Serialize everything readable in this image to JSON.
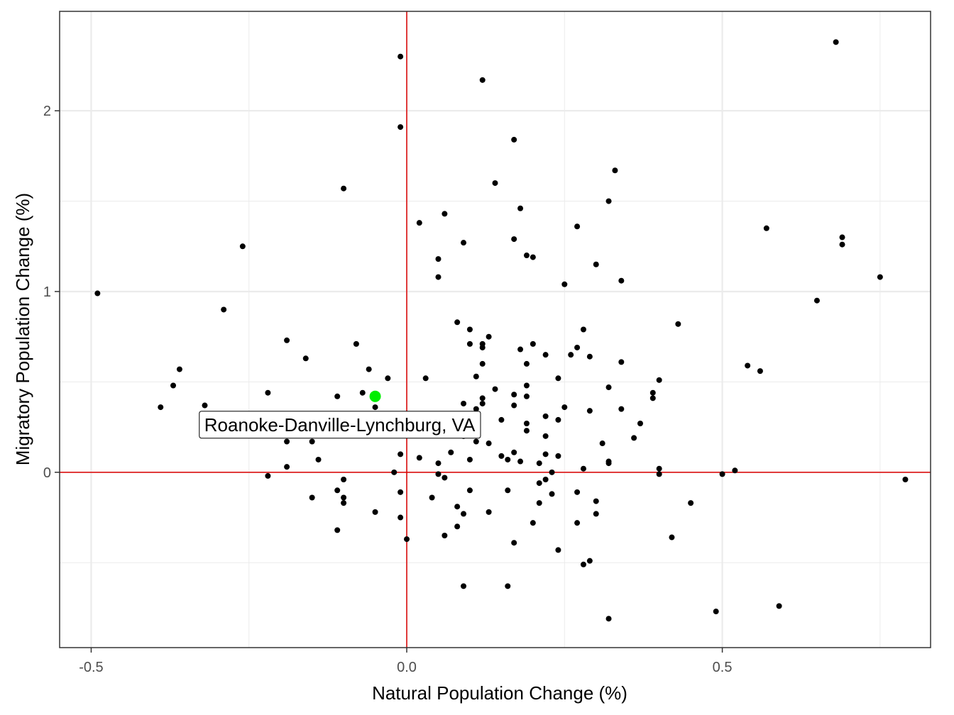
{
  "chart_data": {
    "type": "scatter",
    "xlabel": "Natural Population Change (%)",
    "ylabel": "Migratory Population Change (%)",
    "xlim": [
      -0.55,
      0.83
    ],
    "ylim": [
      -0.97,
      2.55
    ],
    "x_ticks": [
      -0.5,
      0.0,
      0.5
    ],
    "x_tick_labels": [
      "-0.5",
      "0.0",
      "0.5"
    ],
    "y_ticks": [
      0,
      1,
      2
    ],
    "y_tick_labels": [
      "0",
      "1",
      "2"
    ],
    "x_minor_ticks": [
      -0.25,
      0.25,
      0.75
    ],
    "y_minor_ticks": [
      -0.5,
      0.5,
      1.5
    ],
    "grid": true,
    "reference_lines": {
      "x": 0,
      "y": 0,
      "color": "#dd0000"
    },
    "point_color": "#000000",
    "highlight_color": "#00ee00",
    "highlight": {
      "label": "Roanoke-Danville-Lynchburg, VA",
      "x": -0.05,
      "y": 0.42
    },
    "points": [
      [
        -0.49,
        0.99
      ],
      [
        -0.39,
        0.36
      ],
      [
        -0.37,
        0.48
      ],
      [
        -0.36,
        0.57
      ],
      [
        -0.32,
        0.37
      ],
      [
        -0.29,
        0.9
      ],
      [
        -0.26,
        1.25
      ],
      [
        -0.22,
        0.44
      ],
      [
        -0.22,
        -0.02
      ],
      [
        -0.19,
        0.73
      ],
      [
        -0.19,
        0.17
      ],
      [
        -0.19,
        0.03
      ],
      [
        -0.16,
        0.63
      ],
      [
        -0.15,
        0.17
      ],
      [
        -0.15,
        -0.14
      ],
      [
        -0.14,
        0.07
      ],
      [
        -0.11,
        0.42
      ],
      [
        -0.11,
        -0.1
      ],
      [
        -0.11,
        -0.32
      ],
      [
        -0.1,
        1.57
      ],
      [
        -0.1,
        -0.04
      ],
      [
        -0.1,
        -0.14
      ],
      [
        -0.1,
        -0.17
      ],
      [
        -0.08,
        0.71
      ],
      [
        -0.07,
        0.44
      ],
      [
        -0.06,
        0.57
      ],
      [
        -0.05,
        0.36
      ],
      [
        -0.05,
        -0.22
      ],
      [
        -0.03,
        0.52
      ],
      [
        -0.02,
        0.0
      ],
      [
        -0.01,
        2.3
      ],
      [
        -0.01,
        1.91
      ],
      [
        -0.01,
        0.1
      ],
      [
        -0.01,
        -0.11
      ],
      [
        -0.01,
        -0.25
      ],
      [
        0.0,
        -0.37
      ],
      [
        0.02,
        1.38
      ],
      [
        0.02,
        0.08
      ],
      [
        0.03,
        0.52
      ],
      [
        0.04,
        -0.14
      ],
      [
        0.05,
        1.18
      ],
      [
        0.05,
        1.08
      ],
      [
        0.05,
        0.05
      ],
      [
        0.05,
        -0.01
      ],
      [
        0.06,
        1.43
      ],
      [
        0.06,
        -0.03
      ],
      [
        0.06,
        -0.35
      ],
      [
        0.07,
        0.11
      ],
      [
        0.08,
        0.83
      ],
      [
        0.08,
        -0.19
      ],
      [
        0.08,
        -0.3
      ],
      [
        0.09,
        1.27
      ],
      [
        0.09,
        0.38
      ],
      [
        0.09,
        0.2
      ],
      [
        0.09,
        -0.23
      ],
      [
        0.09,
        -0.63
      ],
      [
        0.1,
        0.79
      ],
      [
        0.1,
        0.71
      ],
      [
        0.1,
        0.07
      ],
      [
        0.1,
        -0.1
      ],
      [
        0.11,
        0.53
      ],
      [
        0.11,
        0.35
      ],
      [
        0.11,
        0.17
      ],
      [
        0.12,
        2.17
      ],
      [
        0.12,
        0.71
      ],
      [
        0.12,
        0.69
      ],
      [
        0.12,
        0.6
      ],
      [
        0.12,
        0.41
      ],
      [
        0.12,
        0.38
      ],
      [
        0.13,
        0.75
      ],
      [
        0.13,
        0.16
      ],
      [
        0.13,
        -0.22
      ],
      [
        0.14,
        1.6
      ],
      [
        0.14,
        0.46
      ],
      [
        0.15,
        0.29
      ],
      [
        0.15,
        0.09
      ],
      [
        0.16,
        0.07
      ],
      [
        0.16,
        -0.1
      ],
      [
        0.16,
        -0.63
      ],
      [
        0.17,
        1.84
      ],
      [
        0.17,
        1.29
      ],
      [
        0.17,
        0.43
      ],
      [
        0.17,
        0.37
      ],
      [
        0.17,
        0.11
      ],
      [
        0.17,
        -0.39
      ],
      [
        0.18,
        1.46
      ],
      [
        0.18,
        0.68
      ],
      [
        0.18,
        0.06
      ],
      [
        0.19,
        1.2
      ],
      [
        0.19,
        0.6
      ],
      [
        0.19,
        0.48
      ],
      [
        0.19,
        0.42
      ],
      [
        0.19,
        0.27
      ],
      [
        0.19,
        0.23
      ],
      [
        0.2,
        1.19
      ],
      [
        0.2,
        0.71
      ],
      [
        0.2,
        -0.28
      ],
      [
        0.21,
        0.05
      ],
      [
        0.21,
        -0.06
      ],
      [
        0.21,
        -0.17
      ],
      [
        0.22,
        0.65
      ],
      [
        0.22,
        0.31
      ],
      [
        0.22,
        0.2
      ],
      [
        0.22,
        0.1
      ],
      [
        0.22,
        -0.04
      ],
      [
        0.23,
        0.0
      ],
      [
        0.23,
        -0.12
      ],
      [
        0.24,
        0.52
      ],
      [
        0.24,
        0.29
      ],
      [
        0.24,
        0.09
      ],
      [
        0.24,
        -0.43
      ],
      [
        0.25,
        1.04
      ],
      [
        0.25,
        0.36
      ],
      [
        0.26,
        0.65
      ],
      [
        0.27,
        1.36
      ],
      [
        0.27,
        0.69
      ],
      [
        0.27,
        -0.11
      ],
      [
        0.27,
        -0.28
      ],
      [
        0.28,
        0.79
      ],
      [
        0.28,
        0.02
      ],
      [
        0.28,
        -0.51
      ],
      [
        0.29,
        0.64
      ],
      [
        0.29,
        0.34
      ],
      [
        0.29,
        -0.49
      ],
      [
        0.3,
        1.15
      ],
      [
        0.3,
        -0.16
      ],
      [
        0.3,
        -0.23
      ],
      [
        0.31,
        0.16
      ],
      [
        0.32,
        1.5
      ],
      [
        0.32,
        0.47
      ],
      [
        0.32,
        0.06
      ],
      [
        0.32,
        0.05
      ],
      [
        0.32,
        -0.81
      ],
      [
        0.33,
        1.67
      ],
      [
        0.34,
        1.06
      ],
      [
        0.34,
        0.61
      ],
      [
        0.34,
        0.35
      ],
      [
        0.36,
        0.19
      ],
      [
        0.37,
        0.27
      ],
      [
        0.39,
        0.44
      ],
      [
        0.39,
        0.41
      ],
      [
        0.4,
        0.51
      ],
      [
        0.4,
        0.02
      ],
      [
        0.4,
        -0.01
      ],
      [
        0.42,
        -0.36
      ],
      [
        0.43,
        0.82
      ],
      [
        0.45,
        -0.17
      ],
      [
        0.49,
        -0.77
      ],
      [
        0.5,
        -0.01
      ],
      [
        0.52,
        0.01
      ],
      [
        0.54,
        0.59
      ],
      [
        0.56,
        0.56
      ],
      [
        0.57,
        1.35
      ],
      [
        0.59,
        -0.74
      ],
      [
        0.65,
        0.95
      ],
      [
        0.68,
        2.38
      ],
      [
        0.69,
        1.3
      ],
      [
        0.69,
        1.26
      ],
      [
        0.75,
        1.08
      ],
      [
        0.79,
        -0.04
      ]
    ]
  }
}
